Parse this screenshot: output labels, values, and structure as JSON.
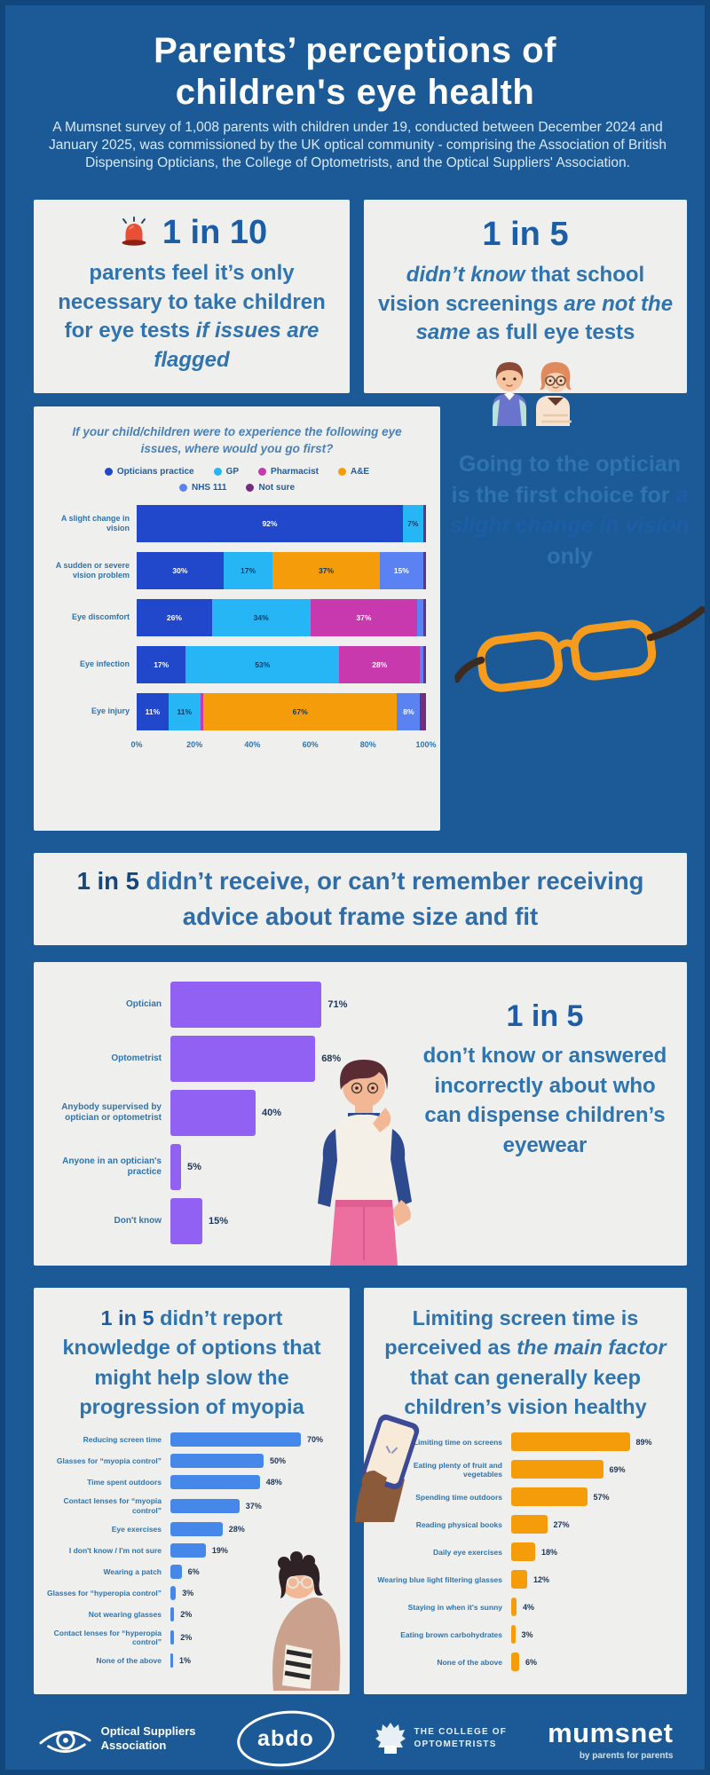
{
  "colors": {
    "bg": "#1b5a96",
    "panel": "#efefed",
    "heading_blue": "#1d5da6",
    "body_blue": "#2f74ae",
    "navy": "#15477c",
    "optician_blue": "#2148cb",
    "gp_cyan": "#27b6f5",
    "pharmacist_magenta": "#c939ae",
    "ae_orange": "#f59c0a",
    "nhs_blue": "#5b82f2",
    "notsure_purple": "#722d7e",
    "purple_bar": "#9061f2",
    "blue_bar": "#4687ea",
    "orange_bar": "#f59c0a"
  },
  "header": {
    "title_line1": "Parents’ perceptions of",
    "title_line2": "children's eye health",
    "intro": "A Mumsnet survey of 1,008 parents with children under 19, conducted between December 2024 and January 2025, was commissioned by the UK optical community - comprising the Association of British Dispensing Opticians, the College of Optometrists, and the Optical Suppliers' Association."
  },
  "stat_box_1": {
    "stat": "1 in 10",
    "text_normal": "parents feel it’s only necessary to take children for eye tests ",
    "text_italic": "if issues are flagged"
  },
  "stat_box_2": {
    "stat": "1 in 5",
    "seg1_italic": "didn’t know",
    "seg2": " that school vision screenings ",
    "seg3_italic": "are not the same",
    "seg4": " as full eye tests"
  },
  "going_note": {
    "seg1": "Going to the optician is the first choice for ",
    "seg2_bold_italic": "a slight change in vision",
    "seg3": " only"
  },
  "frame_fit_banner": {
    "bold": "1 in 5",
    "rest": " didn’t receive, or can’t remember receiving advice about frame size and fit"
  },
  "dispense_note": {
    "stat": "1 in 5",
    "body": "don’t know or answered incorrectly about who can dispense children’s eyewear"
  },
  "myopia_heading": {
    "bold": "1 in 5",
    "rest": " didn’t report knowledge of options that might help slow the progression of myopia"
  },
  "screen_heading": {
    "seg1": "Limiting screen time is perceived as ",
    "seg2_italic": "the main factor",
    "seg3": " that can generally keep children’s vision healthy"
  },
  "chart_data": [
    {
      "type": "bar",
      "stacked": true,
      "orientation": "horizontal",
      "title": "If your child/children were to experience the following eye issues, where would you go first?",
      "categories": [
        "A slight change in vision",
        "A sudden or severe vision problem",
        "Eye discomfort",
        "Eye infection",
        "Eye injury"
      ],
      "series": [
        {
          "name": "Opticians practice",
          "color": "#2148cb",
          "label_color": "#ffffff",
          "values": [
            92,
            30,
            26,
            17,
            11
          ]
        },
        {
          "name": "GP",
          "color": "#27b6f5",
          "label_color": "#0d3a66",
          "values": [
            7,
            17,
            34,
            53,
            11
          ]
        },
        {
          "name": "Pharmacist",
          "color": "#c939ae",
          "label_color": "#ffffff",
          "values": [
            0,
            0,
            37,
            28,
            1
          ]
        },
        {
          "name": "A&E",
          "color": "#f59c0a",
          "label_color": "#0d3a66",
          "values": [
            0,
            37,
            0,
            0,
            67
          ]
        },
        {
          "name": "NHS 111",
          "color": "#5b82f2",
          "label_color": "#ffffff",
          "values": [
            0,
            15,
            2,
            1,
            8
          ]
        },
        {
          "name": "Not sure",
          "color": "#722d7e",
          "label_color": "#ffffff",
          "values": [
            1,
            1,
            1,
            1,
            2
          ]
        }
      ],
      "xlim": [
        0,
        100
      ],
      "x_ticks": [
        "0%",
        "20%",
        "40%",
        "60%",
        "80%",
        "100%"
      ],
      "legend_position": "top",
      "grid": false
    },
    {
      "type": "bar",
      "orientation": "horizontal",
      "color": "#9061f2",
      "categories": [
        "Optician",
        "Optometrist",
        "Anybody supervised by optician or optometrist",
        "Anyone in an optician's practice",
        "Don't know"
      ],
      "values": [
        71,
        68,
        40,
        5,
        15
      ],
      "value_suffix": "%"
    },
    {
      "type": "bar",
      "orientation": "horizontal",
      "color": "#4687ea",
      "categories": [
        "Reducing screen time",
        "Glasses for “myopia control”",
        "Time spent outdoors",
        "Contact lenses for “myopia control”",
        "Eye exercises",
        "I don't know / I'm not sure",
        "Wearing a patch",
        "Glasses for “hyperopia control”",
        "Not wearing glasses",
        "Contact lenses for “hyperopia control”",
        "None of the above"
      ],
      "values": [
        70,
        50,
        48,
        37,
        28,
        19,
        6,
        3,
        2,
        2,
        1
      ],
      "value_suffix": "%"
    },
    {
      "type": "bar",
      "orientation": "horizontal",
      "color": "#f59c0a",
      "categories": [
        "Limiting time on screens",
        "Eating plenty of fruit and vegetables",
        "Spending time outdoors",
        "Reading physical books",
        "Daily eye exercises",
        "Wearing blue light filtering glasses",
        "Staying in when it's sunny",
        "Eating brown carbohydrates",
        "None of the above"
      ],
      "values": [
        89,
        69,
        57,
        27,
        18,
        12,
        4,
        3,
        6
      ],
      "value_suffix": "%"
    }
  ],
  "footer": {
    "osa_line1": "Optical Suppliers",
    "osa_line2": "Association",
    "abdo": "abdo",
    "college_line1": "THE COLLEGE OF",
    "college_line2": "OPTOMETRISTS",
    "mumsnet": "mumsnet",
    "mumsnet_tagline": "by parents for parents"
  }
}
